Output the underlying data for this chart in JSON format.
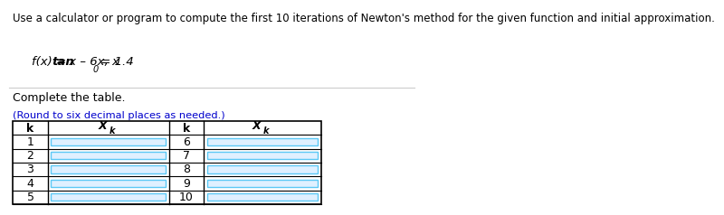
{
  "title_text": "Use a calculator or program to compute the first 10 iterations of Newton's method for the given function and initial approximation.",
  "complete_text": "Complete the table.",
  "round_text": "(Round to six decimal places as needed.)",
  "rows_left": [
    1,
    2,
    3,
    4,
    5
  ],
  "rows_right": [
    6,
    7,
    8,
    9,
    10
  ],
  "bg_color": "#ffffff",
  "text_color": "#000000",
  "blue_text": "#0000cc",
  "header_color": "#000000",
  "input_box_color": "#dff0ff",
  "input_box_border": "#5bc8f5",
  "title_fontsize": 8.5,
  "func_fontsize": 9.5,
  "table_fontsize": 9.0,
  "small_fontsize": 8.2
}
